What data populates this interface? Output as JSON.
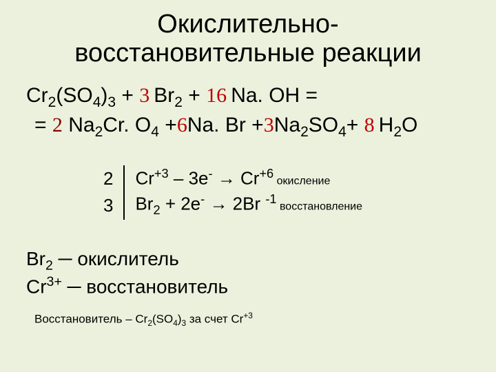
{
  "title_line1": "Окислительно-",
  "title_line2": "восстановительные реакции",
  "equation": {
    "reactants": {
      "r1": {
        "formula_parts": [
          "Cr",
          "2",
          "(SO",
          "4",
          ")",
          "3"
        ]
      },
      "r2": {
        "coef": "3",
        "formula_parts": [
          "Br",
          "2"
        ]
      },
      "r3": {
        "coef": "16",
        "formula_parts": [
          "Na. OH"
        ]
      }
    },
    "products": {
      "p1": {
        "coef": "2",
        "formula_parts": [
          "Na",
          "2",
          "Cr. O",
          "4"
        ]
      },
      "p2": {
        "coef": "6",
        "formula_parts": [
          "Na. Br"
        ]
      },
      "p3": {
        "coef": "3",
        "formula_parts": [
          "Na",
          "2",
          "SO",
          "4"
        ]
      },
      "p4": {
        "coef": "8",
        "formula_parts": [
          "H",
          "2",
          "O"
        ]
      }
    }
  },
  "half_reactions": {
    "coef1": "2",
    "coef2": "3",
    "line1_pre": "Cr",
    "line1_sup1": "+3",
    "line1_mid": " – 3e",
    "line1_sup2": "-",
    "line1_arrow": " → Cr",
    "line1_sup3": "+6",
    "line1_label": " окисление",
    "line2_pre": "Br",
    "line2_sub1": "2",
    "line2_mid": " + 2e",
    "line2_sup1": "-",
    "line2_arrow": " → 2Br ",
    "line2_sup2": "-1",
    "line2_label": " восстановление"
  },
  "roles": {
    "r1_species_base": "Br",
    "r1_species_sub": "2",
    "r1_dash": " ─ ",
    "r1_role": "окислитель",
    "r2_species_base": "Cr",
    "r2_species_sup": "3+",
    "r2_dash": " ─ ",
    "r2_role": "восстановитель"
  },
  "footnote": {
    "pre": "Восстановитель – Cr",
    "sub1": "2",
    "mid1": "(SO",
    "sub2": "4",
    "mid2": ")",
    "sub3": "3",
    "post": " за счет Cr",
    "sup1": "+3"
  },
  "colors": {
    "bg": "#ecf1dd",
    "text": "#000000",
    "coef": "#c00000"
  }
}
